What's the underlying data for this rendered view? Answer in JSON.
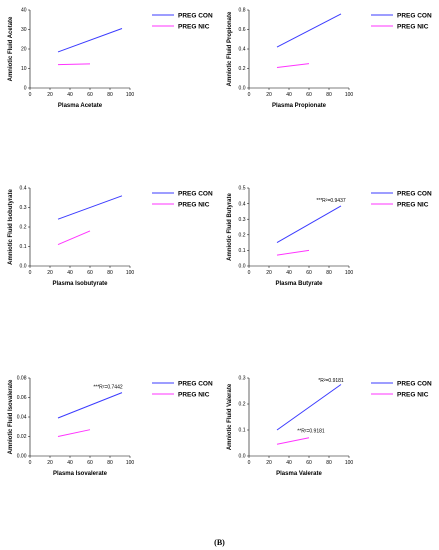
{
  "figure_label": "(B)",
  "colors": {
    "preg_con": "#3b3bff",
    "preg_nic": "#ff33ff"
  },
  "chart_data": [
    {
      "type": "line",
      "xlabel": "Plasma Acetate",
      "ylabel": "Amniotic Fluid Acetate",
      "xlim": [
        0,
        100
      ],
      "ylim": [
        0,
        40
      ],
      "xticks": [
        "0",
        "20",
        "40",
        "60",
        "80",
        "100"
      ],
      "yticks": [
        "0",
        "10",
        "20",
        "30",
        "40"
      ],
      "legend_placement": "right",
      "series": [
        {
          "name": "PREG CON",
          "x": [
            28,
            92
          ],
          "y": [
            18.5,
            30.5
          ]
        },
        {
          "name": "PREG NIC",
          "x": [
            28,
            60
          ],
          "y": [
            12,
            12.4
          ]
        }
      ],
      "annotations": []
    },
    {
      "type": "line",
      "xlabel": "Plasma Propionate",
      "ylabel": "Amniotic Fluid Propionate",
      "xlim": [
        0,
        100
      ],
      "ylim": [
        0,
        0.8
      ],
      "xticks": [
        "0",
        "20",
        "40",
        "60",
        "80",
        "100"
      ],
      "yticks": [
        "0.0",
        "0.2",
        "0.4",
        "0.6",
        "0.8"
      ],
      "legend_placement": "right",
      "series": [
        {
          "name": "PREG CON",
          "x": [
            28,
            92
          ],
          "y": [
            0.42,
            0.76
          ]
        },
        {
          "name": "PREG NIC",
          "x": [
            28,
            60
          ],
          "y": [
            0.21,
            0.25
          ]
        }
      ],
      "annotations": []
    },
    {
      "type": "line",
      "xlabel": "Plasma Isobutyrate",
      "ylabel": "Amniotic Fluid Isobutyrate",
      "xlim": [
        0,
        100
      ],
      "ylim": [
        0,
        0.4
      ],
      "xticks": [
        "0",
        "20",
        "40",
        "60",
        "80",
        "100"
      ],
      "yticks": [
        "0.0",
        "0.1",
        "0.2",
        "0.3",
        "0.4"
      ],
      "legend_placement": "right",
      "series": [
        {
          "name": "PREG CON",
          "x": [
            28,
            92
          ],
          "y": [
            0.24,
            0.36
          ]
        },
        {
          "name": "PREG NIC",
          "x": [
            28,
            60
          ],
          "y": [
            0.11,
            0.18
          ]
        }
      ],
      "annotations": []
    },
    {
      "type": "line",
      "xlabel": "Plasma Butyrate",
      "ylabel": "Amniotic Fluid Butyrate",
      "xlim": [
        0,
        100
      ],
      "ylim": [
        0,
        0.5
      ],
      "xticks": [
        "0",
        "20",
        "40",
        "60",
        "80",
        "100"
      ],
      "yticks": [
        "0.0",
        "0.1",
        "0.2",
        "0.3",
        "0.4",
        "0.5"
      ],
      "legend_placement": "right",
      "series": [
        {
          "name": "PREG CON",
          "x": [
            28,
            92
          ],
          "y": [
            0.15,
            0.385
          ]
        },
        {
          "name": "PREG NIC",
          "x": [
            28,
            60
          ],
          "y": [
            0.07,
            0.1
          ]
        }
      ],
      "annotations": [
        {
          "text": "***R²=0.9437",
          "x": 82,
          "y": 0.41
        }
      ]
    },
    {
      "type": "line",
      "xlabel": "Plasma Isovalerate",
      "ylabel": "Amniotic Fluid Isovalerate",
      "xlim": [
        0,
        100
      ],
      "ylim": [
        0,
        0.08
      ],
      "xticks": [
        "0",
        "20",
        "40",
        "60",
        "80",
        "100"
      ],
      "yticks": [
        "0.00",
        "0.02",
        "0.04",
        "0.06",
        "0.08"
      ],
      "legend_placement": "right",
      "series": [
        {
          "name": "PREG CON",
          "x": [
            28,
            92
          ],
          "y": [
            0.039,
            0.065
          ]
        },
        {
          "name": "PREG NIC",
          "x": [
            28,
            60
          ],
          "y": [
            0.02,
            0.027
          ]
        }
      ],
      "annotations": [
        {
          "text": "***R²=0.7442",
          "x": 78,
          "y": 0.069
        }
      ]
    },
    {
      "type": "line",
      "xlabel": "Plasma Valerate",
      "ylabel": "Amniotic Fluid Valerate",
      "xlim": [
        0,
        100
      ],
      "ylim": [
        0,
        0.3
      ],
      "xticks": [
        "0",
        "20",
        "40",
        "60",
        "80",
        "100"
      ],
      "yticks": [
        "0.0",
        "0.1",
        "0.2",
        "0.3"
      ],
      "legend_placement": "right",
      "series": [
        {
          "name": "PREG CON",
          "x": [
            28,
            92
          ],
          "y": [
            0.1,
            0.275
          ]
        },
        {
          "name": "PREG NIC",
          "x": [
            28,
            60
          ],
          "y": [
            0.045,
            0.07
          ]
        }
      ],
      "annotations": [
        {
          "text": "*R²=0.9181",
          "x": 82,
          "y": 0.285
        },
        {
          "text": "**R²=0.9181",
          "x": 62,
          "y": 0.09
        }
      ]
    }
  ]
}
